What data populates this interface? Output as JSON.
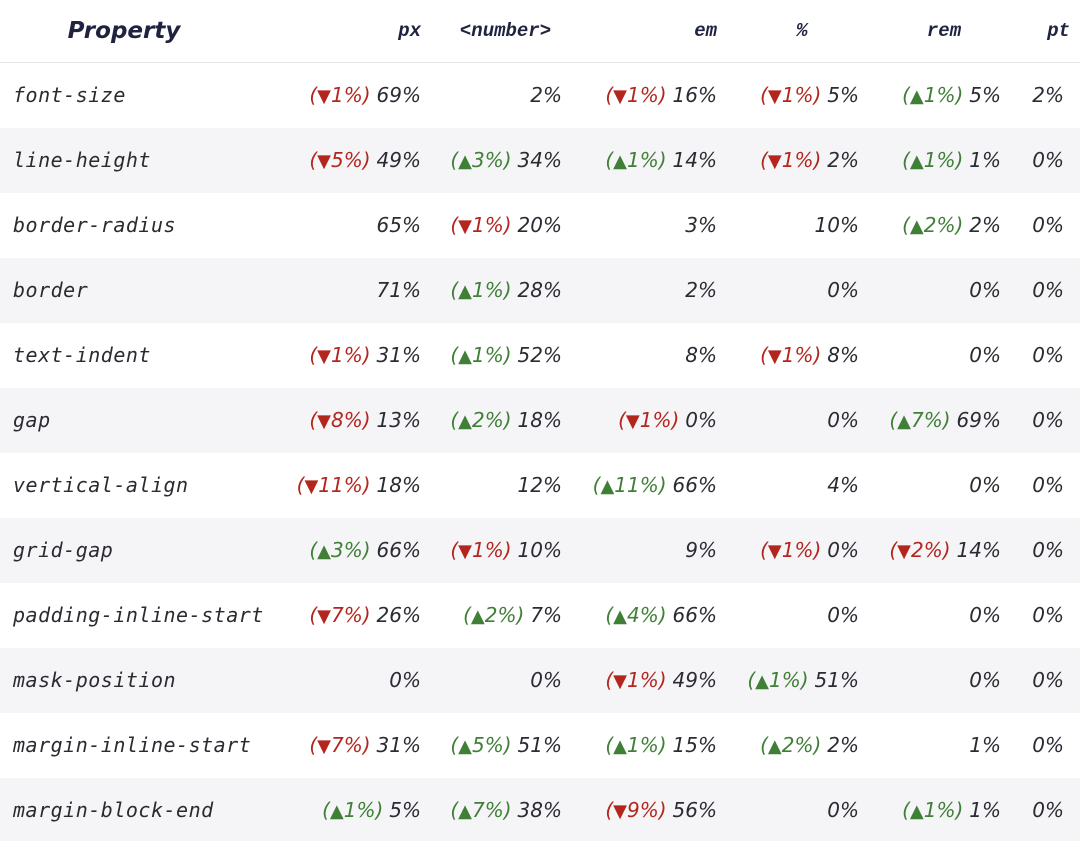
{
  "colors": {
    "down": "#b3261e",
    "up": "#3f7f36",
    "header_text": "#1f2340",
    "stripe": "#f5f5f8"
  },
  "headers": [
    "Property",
    "px",
    "<number>",
    "em",
    "%",
    "rem",
    "pt"
  ],
  "rows": [
    {
      "property": "font-size",
      "cells": [
        {
          "change": "1%",
          "dir": "down",
          "value": "69%"
        },
        {
          "value": "2%"
        },
        {
          "change": "1%",
          "dir": "down",
          "value": "16%"
        },
        {
          "change": "1%",
          "dir": "down",
          "value": "5%"
        },
        {
          "change": "1%",
          "dir": "up",
          "value": "5%"
        },
        {
          "value": "2%"
        }
      ]
    },
    {
      "property": "line-height",
      "cells": [
        {
          "change": "5%",
          "dir": "down",
          "value": "49%"
        },
        {
          "change": "3%",
          "dir": "up",
          "value": "34%"
        },
        {
          "change": "1%",
          "dir": "up",
          "value": "14%"
        },
        {
          "change": "1%",
          "dir": "down",
          "value": "2%"
        },
        {
          "change": "1%",
          "dir": "up",
          "value": "1%"
        },
        {
          "value": "0%"
        }
      ]
    },
    {
      "property": "border-radius",
      "cells": [
        {
          "value": "65%"
        },
        {
          "change": "1%",
          "dir": "down",
          "value": "20%"
        },
        {
          "value": "3%"
        },
        {
          "value": "10%"
        },
        {
          "change": "2%",
          "dir": "up",
          "value": "2%"
        },
        {
          "value": "0%"
        }
      ]
    },
    {
      "property": "border",
      "cells": [
        {
          "value": "71%"
        },
        {
          "change": "1%",
          "dir": "up",
          "value": "28%"
        },
        {
          "value": "2%"
        },
        {
          "value": "0%"
        },
        {
          "value": "0%"
        },
        {
          "value": "0%"
        }
      ]
    },
    {
      "property": "text-indent",
      "cells": [
        {
          "change": "1%",
          "dir": "down",
          "value": "31%"
        },
        {
          "change": "1%",
          "dir": "up",
          "value": "52%"
        },
        {
          "value": "8%"
        },
        {
          "change": "1%",
          "dir": "down",
          "value": "8%"
        },
        {
          "value": "0%"
        },
        {
          "value": "0%"
        }
      ]
    },
    {
      "property": "gap",
      "cells": [
        {
          "change": "8%",
          "dir": "down",
          "value": "13%"
        },
        {
          "change": "2%",
          "dir": "up",
          "value": "18%"
        },
        {
          "change": "1%",
          "dir": "down",
          "value": "0%"
        },
        {
          "value": "0%"
        },
        {
          "change": "7%",
          "dir": "up",
          "value": "69%"
        },
        {
          "value": "0%"
        }
      ]
    },
    {
      "property": "vertical-align",
      "cells": [
        {
          "change": "11%",
          "dir": "down",
          "value": "18%"
        },
        {
          "value": "12%"
        },
        {
          "change": "11%",
          "dir": "up",
          "value": "66%"
        },
        {
          "value": "4%"
        },
        {
          "value": "0%"
        },
        {
          "value": "0%"
        }
      ]
    },
    {
      "property": "grid-gap",
      "cells": [
        {
          "change": "3%",
          "dir": "up",
          "value": "66%"
        },
        {
          "change": "1%",
          "dir": "down",
          "value": "10%"
        },
        {
          "value": "9%"
        },
        {
          "change": "1%",
          "dir": "down",
          "value": "0%"
        },
        {
          "change": "2%",
          "dir": "down",
          "value": "14%"
        },
        {
          "value": "0%"
        }
      ]
    },
    {
      "property": "padding-inline-start",
      "cells": [
        {
          "change": "7%",
          "dir": "down",
          "value": "26%"
        },
        {
          "change": "2%",
          "dir": "up",
          "value": "7%"
        },
        {
          "change": "4%",
          "dir": "up",
          "value": "66%"
        },
        {
          "value": "0%"
        },
        {
          "value": "0%"
        },
        {
          "value": "0%"
        }
      ]
    },
    {
      "property": "mask-position",
      "cells": [
        {
          "value": "0%"
        },
        {
          "value": "0%"
        },
        {
          "change": "1%",
          "dir": "down",
          "value": "49%"
        },
        {
          "change": "1%",
          "dir": "up",
          "value": "51%"
        },
        {
          "value": "0%"
        },
        {
          "value": "0%"
        }
      ]
    },
    {
      "property": "margin-inline-start",
      "cells": [
        {
          "change": "7%",
          "dir": "down",
          "value": "31%"
        },
        {
          "change": "5%",
          "dir": "up",
          "value": "51%"
        },
        {
          "change": "1%",
          "dir": "up",
          "value": "15%"
        },
        {
          "change": "2%",
          "dir": "up",
          "value": "2%"
        },
        {
          "value": "1%"
        },
        {
          "value": "0%"
        }
      ]
    },
    {
      "property": "margin-block-end",
      "cells": [
        {
          "change": "1%",
          "dir": "up",
          "value": "5%"
        },
        {
          "change": "7%",
          "dir": "up",
          "value": "38%"
        },
        {
          "change": "9%",
          "dir": "down",
          "value": "56%"
        },
        {
          "value": "0%"
        },
        {
          "change": "1%",
          "dir": "up",
          "value": "1%"
        },
        {
          "value": "0%"
        }
      ]
    }
  ]
}
